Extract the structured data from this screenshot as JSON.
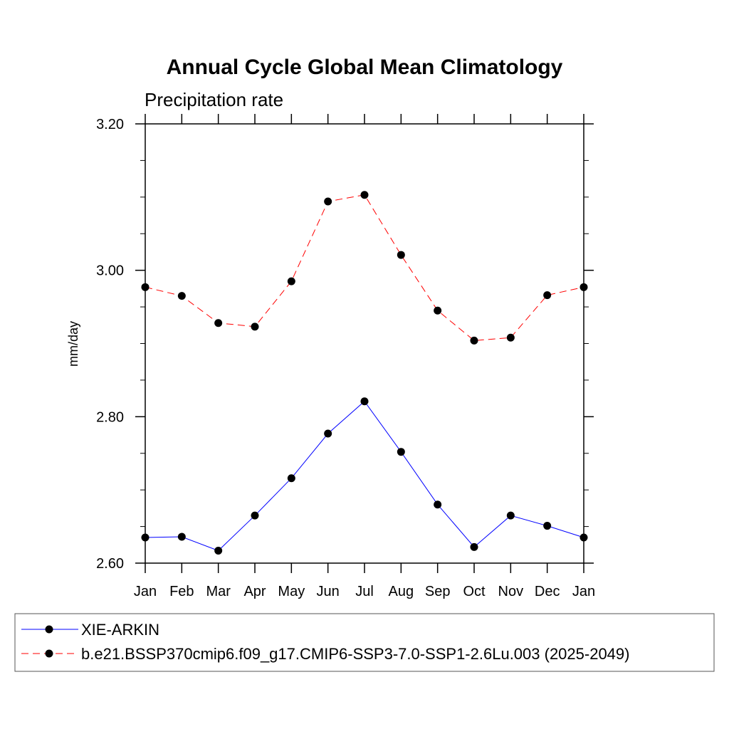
{
  "chart_data": {
    "type": "line",
    "title": "Annual Cycle Global Mean Climatology",
    "subtitle": "Precipitation rate",
    "ylabel": "mm/day",
    "xlabel": "",
    "categories": [
      "Jan",
      "Feb",
      "Mar",
      "Apr",
      "May",
      "Jun",
      "Jul",
      "Aug",
      "Sep",
      "Oct",
      "Nov",
      "Dec",
      "Jan"
    ],
    "ylim": [
      2.6,
      3.2
    ],
    "yticks": [
      "2.60",
      "2.80",
      "3.00",
      "3.20"
    ],
    "ytick_values": [
      2.6,
      2.8,
      3.0,
      3.2
    ],
    "yminor_step": 0.05,
    "grid": false,
    "legend_position": "bottom",
    "series": [
      {
        "name": "XIE-ARKIN",
        "color": "#0000ff",
        "style": "solid",
        "marker": "filled-circle",
        "values": [
          2.635,
          2.636,
          2.617,
          2.665,
          2.716,
          2.777,
          2.821,
          2.752,
          2.68,
          2.622,
          2.665,
          2.651,
          2.635
        ]
      },
      {
        "name": "b.e21.BSSP370cmip6.f09_g17.CMIP6-SSP3-7.0-SSP1-2.6Lu.003 (2025-2049)",
        "color": "#ff0000",
        "style": "dashed",
        "marker": "filled-circle",
        "values": [
          2.977,
          2.965,
          2.928,
          2.923,
          2.985,
          3.094,
          3.103,
          3.021,
          2.945,
          2.904,
          2.908,
          2.966,
          2.977
        ]
      }
    ]
  }
}
